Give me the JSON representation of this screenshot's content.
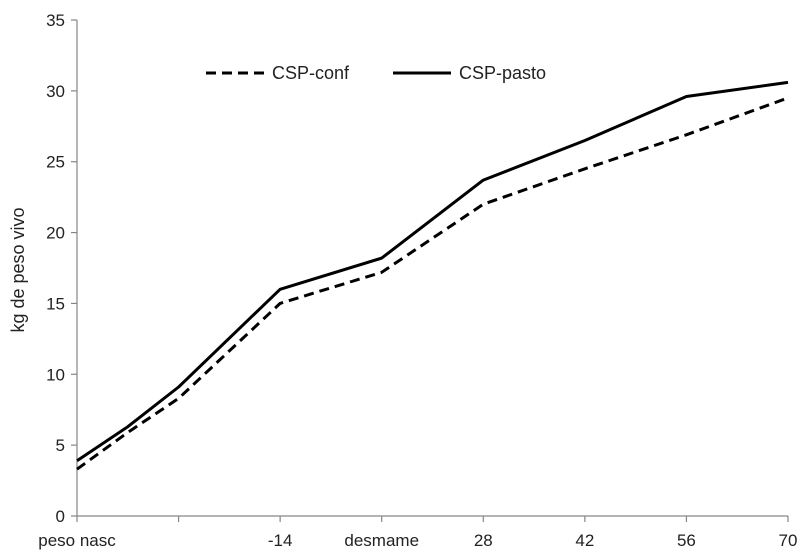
{
  "chart_data": {
    "type": "line",
    "categories": [
      "peso nasc",
      "",
      "",
      "-14",
      "desmame",
      "28",
      "42",
      "56",
      "70"
    ],
    "x_positions": [
      0,
      0.5,
      1,
      2,
      3,
      4,
      5,
      6,
      7
    ],
    "x_tick_positions": [
      0,
      1,
      2,
      3,
      4,
      5,
      6,
      7
    ],
    "x_tick_labels": [
      "peso nasc",
      "",
      "-14",
      "desmame",
      "28",
      "42",
      "56",
      "70"
    ],
    "series": [
      {
        "name": "CSP-conf",
        "style": "dashed",
        "color": "#000000",
        "values": [
          3.3,
          5.9,
          8.3,
          15.0,
          17.2,
          22.0,
          24.5,
          26.9,
          29.5
        ]
      },
      {
        "name": "CSP-pasto",
        "style": "solid",
        "color": "#000000",
        "values": [
          3.9,
          6.3,
          9.1,
          16.0,
          18.2,
          23.7,
          26.5,
          29.6,
          30.6
        ]
      }
    ],
    "xlabel": "",
    "ylabel": "kg de peso vivo",
    "ylim": [
      0,
      35
    ],
    "yticks": [
      0,
      5,
      10,
      15,
      20,
      25,
      30,
      35
    ],
    "grid": false,
    "legend": "top-center"
  }
}
